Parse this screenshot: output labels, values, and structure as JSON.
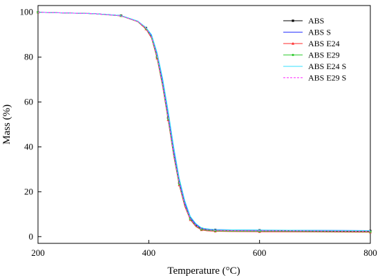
{
  "chart_data": {
    "type": "line",
    "title": "",
    "xlabel": "Temperature (°C)",
    "ylabel": "Mass (%)",
    "xlim": [
      200,
      800
    ],
    "ylim": [
      -3,
      103
    ],
    "x_ticks": [
      200,
      400,
      600,
      800
    ],
    "y_ticks": [
      0,
      20,
      40,
      60,
      80,
      100
    ],
    "grid": false,
    "legend_position": "top-right",
    "series": [
      {
        "name": "ABS",
        "color": "#000000",
        "dash": "solid",
        "marker": "square",
        "x": [
          200,
          300,
          350,
          380,
          395,
          405,
          415,
          425,
          435,
          445,
          455,
          465,
          475,
          485,
          495,
          505,
          520,
          550,
          600,
          700,
          800
        ],
        "y": [
          100,
          99.4,
          98.5,
          96,
          93,
          89,
          80,
          68,
          53,
          37,
          24,
          14,
          8,
          5,
          3.6,
          3.2,
          3.0,
          2.9,
          2.8,
          2.6,
          2.5
        ]
      },
      {
        "name": "ABS S",
        "color": "#2a35ff",
        "dash": "solid",
        "marker": "none",
        "x": [
          200,
          300,
          350,
          380,
          395,
          405,
          415,
          425,
          435,
          445,
          455,
          465,
          475,
          485,
          495,
          505,
          520,
          550,
          600,
          700,
          800
        ],
        "y": [
          100,
          99.4,
          98.5,
          96,
          93,
          89.5,
          81,
          69,
          54,
          38,
          25,
          15,
          8.5,
          5.5,
          3.8,
          3.4,
          3.1,
          3.0,
          2.9,
          2.8,
          2.7
        ]
      },
      {
        "name": "ABS E24",
        "color": "#ff2a2a",
        "dash": "solid",
        "marker": "triangle",
        "x": [
          200,
          300,
          350,
          380,
          395,
          405,
          415,
          425,
          435,
          445,
          455,
          465,
          475,
          485,
          495,
          505,
          520,
          550,
          600,
          700,
          800
        ],
        "y": [
          100,
          99.4,
          98.4,
          95.8,
          92.5,
          88.5,
          79.5,
          67,
          52,
          36,
          23,
          13.5,
          7.5,
          4.5,
          3.0,
          2.6,
          2.4,
          2.3,
          2.2,
          2.1,
          2.0
        ]
      },
      {
        "name": "ABS E29",
        "color": "#33cc33",
        "dash": "solid",
        "marker": "circle",
        "x": [
          200,
          300,
          350,
          380,
          395,
          405,
          415,
          425,
          435,
          445,
          455,
          465,
          475,
          485,
          495,
          505,
          520,
          550,
          600,
          700,
          800
        ],
        "y": [
          100,
          99.4,
          98.4,
          95.9,
          92.8,
          88.8,
          80,
          67.5,
          52.5,
          36.5,
          23.5,
          14,
          7.8,
          4.8,
          3.2,
          2.8,
          2.6,
          2.5,
          2.4,
          2.3,
          2.2
        ]
      },
      {
        "name": "ABS E24 S",
        "color": "#33e0ff",
        "dash": "solid",
        "marker": "none",
        "x": [
          200,
          300,
          350,
          380,
          395,
          405,
          415,
          425,
          435,
          445,
          455,
          465,
          475,
          485,
          495,
          505,
          520,
          550,
          600,
          700,
          800
        ],
        "y": [
          100,
          99.4,
          98.5,
          96.1,
          93.2,
          90,
          82,
          70.5,
          56,
          40,
          26,
          16,
          9,
          5.8,
          3.9,
          3.4,
          3.1,
          3.0,
          2.9,
          2.8,
          2.7
        ]
      },
      {
        "name": "ABS E29 S",
        "color": "#ff33ff",
        "dash": "dashed",
        "marker": "none",
        "x": [
          200,
          300,
          350,
          380,
          395,
          405,
          415,
          425,
          435,
          445,
          455,
          465,
          475,
          485,
          495,
          505,
          520,
          550,
          600,
          700,
          800
        ],
        "y": [
          100,
          99.4,
          98.4,
          95.9,
          92.9,
          89,
          80.5,
          68,
          53,
          37,
          24,
          14.2,
          8,
          5,
          3.4,
          3.0,
          2.8,
          2.7,
          2.6,
          2.5,
          2.4
        ]
      }
    ]
  }
}
